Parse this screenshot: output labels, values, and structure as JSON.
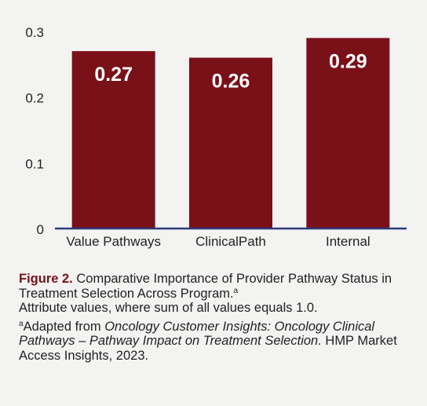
{
  "chart_data": {
    "type": "bar",
    "categories": [
      "Value Pathways",
      "ClinicalPath",
      "Internal"
    ],
    "values": [
      0.27,
      0.26,
      0.29
    ],
    "data_labels": [
      "0.27",
      "0.26",
      "0.29"
    ],
    "yticks": [
      "0",
      "0.1",
      "0.2",
      "0.3"
    ],
    "ylim": [
      0,
      0.3
    ],
    "grid": false,
    "bar_color": "#7a1018",
    "axis_color": "#2e3a7a"
  },
  "caption": {
    "figure_label": "Figure 2.",
    "title_line": "Comparative Importance of Provider Pathway Status in Treatment Selection Across Program.",
    "title_sup": "a",
    "subtitle": "Attribute values, where sum of all values equals 1.0.",
    "note_sup": "a",
    "note_prefix": "Adapted from ",
    "note_source_title": "Oncology Customer Insights: Oncology Clinical Pathways – Pathway Impact on Treatment Selection.",
    "note_suffix": " HMP Market Access Insights, 2023."
  }
}
